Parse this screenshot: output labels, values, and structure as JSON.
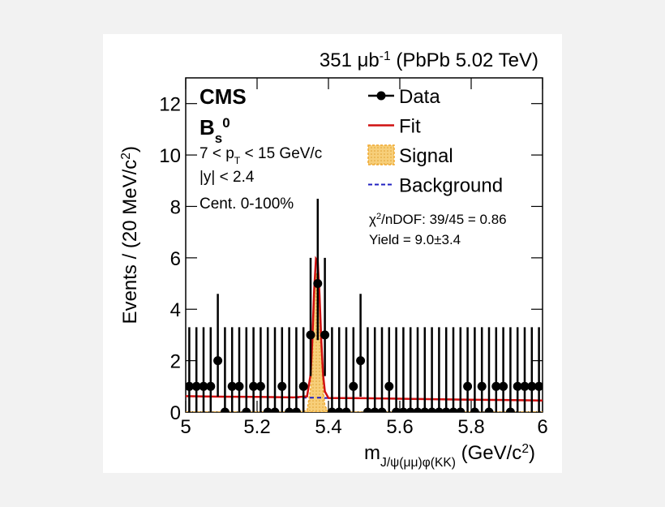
{
  "chart_data": {
    "type": "histfit",
    "title": [
      {
        "text": "351 μb"
      },
      {
        "text": "-1",
        "shift": "sup"
      },
      {
        "text": " (PbPb 5.02 TeV)"
      }
    ],
    "x_label": [
      {
        "text": "m"
      },
      {
        "text": "J/ψ(μμ)φ(KK)",
        "shift": "sub"
      },
      {
        "text": " (GeV/c"
      },
      {
        "text": "2",
        "shift": "sup"
      },
      {
        "text": ")"
      }
    ],
    "y_label": [
      {
        "text": "Events / (20 MeV/c"
      },
      {
        "text": "2",
        "shift": "sup"
      },
      {
        "text": ")"
      }
    ],
    "annotations": [
      [
        {
          "text": "CMS"
        }
      ],
      [
        {
          "text": "B"
        },
        {
          "text": "s",
          "shift": "sub"
        },
        {
          "text": "0",
          "shift": "sup"
        }
      ],
      [
        {
          "text": "7 < p"
        },
        {
          "text": "T",
          "shift": "sub"
        },
        {
          "text": " < 15 GeV/c"
        }
      ],
      [
        {
          "text": "|y| < 2.4"
        }
      ],
      [
        {
          "text": "Cent. 0-100%"
        }
      ],
      [
        {
          "text": "χ"
        },
        {
          "text": "2",
          "shift": "sup"
        },
        {
          "text": "/nDOF: 39/45 = 0.86"
        }
      ],
      [
        {
          "text": "Yield = 9.0±3.4"
        }
      ]
    ],
    "xlim": [
      5,
      6
    ],
    "ylim": [
      0,
      13
    ],
    "xticks": [
      5,
      {
        "value": 5.2,
        "label": "5.2"
      },
      {
        "value": 5.4,
        "label": "5.4"
      },
      {
        "value": 5.6,
        "label": "5.6"
      },
      {
        "value": 5.8,
        "label": "5.8"
      },
      6
    ],
    "yticks": [
      0,
      2,
      4,
      6,
      8,
      10,
      12
    ],
    "data": {
      "name": "Data",
      "color": "#000000",
      "x": [
        5.01,
        5.03,
        5.05,
        5.07,
        5.09,
        5.11,
        5.13,
        5.15,
        5.17,
        5.19,
        5.21,
        5.23,
        5.25,
        5.27,
        5.29,
        5.31,
        5.33,
        5.35,
        5.37,
        5.39,
        5.41,
        5.43,
        5.45,
        5.47,
        5.49,
        5.51,
        5.53,
        5.55,
        5.57,
        5.59,
        5.61,
        5.63,
        5.65,
        5.67,
        5.69,
        5.71,
        5.73,
        5.75,
        5.77,
        5.79,
        5.81,
        5.83,
        5.85,
        5.87,
        5.89,
        5.91,
        5.93,
        5.95,
        5.97,
        5.99
      ],
      "values": [
        1,
        1,
        1,
        1,
        2,
        0,
        1,
        1,
        0,
        1,
        1,
        0,
        0,
        1,
        0,
        0,
        1,
        3,
        5,
        3,
        0,
        0,
        0,
        1,
        2,
        0,
        0,
        0,
        1,
        0,
        0,
        0,
        0,
        0,
        0,
        0,
        0,
        0,
        0,
        1,
        0,
        1,
        0,
        1,
        1,
        0,
        1,
        1,
        1,
        1
      ],
      "err_low": [
        1,
        1,
        1,
        1,
        1.4,
        0,
        1,
        1,
        0,
        1,
        1,
        0,
        0,
        1,
        0,
        0,
        1,
        1.6,
        2.2,
        1.6,
        0,
        0,
        0,
        1,
        1.4,
        0,
        0,
        0,
        1,
        0,
        0,
        0,
        0,
        0,
        0,
        0,
        0,
        0,
        0,
        1,
        0,
        1,
        0,
        1,
        1,
        0,
        1,
        1,
        1,
        1
      ],
      "err_high": [
        2.3,
        2.3,
        2.3,
        2.3,
        2.6,
        3.3,
        2.3,
        2.3,
        3.3,
        2.3,
        2.3,
        3.3,
        3.3,
        2.3,
        3.3,
        3.3,
        2.3,
        3.0,
        3.3,
        3.0,
        3.3,
        3.3,
        3.3,
        2.3,
        2.6,
        3.3,
        3.3,
        3.3,
        2.3,
        3.3,
        3.3,
        3.3,
        3.3,
        3.3,
        3.3,
        3.3,
        3.3,
        3.3,
        3.3,
        2.3,
        3.3,
        2.3,
        3.3,
        2.3,
        2.3,
        3.3,
        2.3,
        2.3,
        2.3,
        2.3
      ]
    },
    "curve_x": [
      5,
      5.1,
      5.2,
      5.3,
      5.34,
      5.35,
      5.355,
      5.36,
      5.365,
      5.37,
      5.375,
      5.38,
      5.385,
      5.39,
      5.4,
      5.5,
      5.6,
      5.7,
      5.8,
      5.9,
      6
    ],
    "series": [
      {
        "name": "Signal",
        "color": "#f0a830",
        "style": "fill",
        "values": [
          0,
          0,
          0,
          0,
          0.05,
          0.9,
          2.3,
          4.2,
          5.4,
          5.3,
          4.0,
          2.2,
          0.9,
          0.25,
          0,
          0,
          0,
          0,
          0,
          0,
          0
        ]
      },
      {
        "name": "Background",
        "color": "#2020c0",
        "style": "dashed",
        "values": [
          0.62,
          0.6,
          0.59,
          0.57,
          0.56,
          0.56,
          0.56,
          0.56,
          0.56,
          0.56,
          0.56,
          0.56,
          0.55,
          0.55,
          0.55,
          0.54,
          0.52,
          0.5,
          0.48,
          0.47,
          0.45
        ]
      },
      {
        "name": "Fit",
        "color": "#d01010",
        "style": "solid",
        "values": [
          0.62,
          0.6,
          0.59,
          0.57,
          0.61,
          1.46,
          2.86,
          4.76,
          5.96,
          5.86,
          4.56,
          2.76,
          1.45,
          0.8,
          0.55,
          0.54,
          0.52,
          0.5,
          0.48,
          0.47,
          0.45
        ]
      }
    ]
  }
}
